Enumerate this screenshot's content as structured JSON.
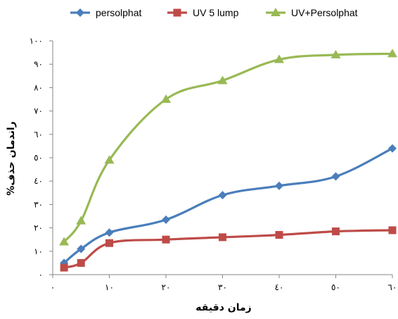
{
  "chart_data": {
    "type": "line",
    "xlabel": "زمان دقیقه",
    "ylabel": "راندمان حذف%",
    "xlim": [
      0,
      60
    ],
    "ylim": [
      0,
      100
    ],
    "x_ticks": [
      0,
      10,
      20,
      30,
      40,
      50,
      60
    ],
    "x_tick_labels": [
      "٠",
      "١٠",
      "٢٠",
      "٣٠",
      "٤٠",
      "٥٠",
      "٦٠"
    ],
    "y_ticks": [
      0,
      10,
      20,
      30,
      40,
      50,
      60,
      70,
      80,
      90,
      100
    ],
    "y_tick_labels": [
      "٠",
      "١٠",
      "٢٠",
      "٣٠",
      "٤٠",
      "٥٠",
      "٦٠",
      "٧٠",
      "٨٠",
      "٩٠",
      "١٠٠"
    ],
    "grid": false,
    "legend_position": "top",
    "series": [
      {
        "name": "persolphat",
        "color": "#4a7ebb",
        "marker": "diamond",
        "x": [
          2,
          5,
          10,
          20,
          30,
          40,
          50,
          60
        ],
        "y": [
          5,
          11,
          18,
          23.5,
          34,
          38,
          42,
          54
        ]
      },
      {
        "name": "UV 5 lump",
        "color": "#be4b48",
        "marker": "square",
        "x": [
          2,
          5,
          10,
          20,
          30,
          40,
          50,
          60
        ],
        "y": [
          3,
          5,
          13.5,
          15,
          16,
          17,
          18.5,
          19
        ]
      },
      {
        "name": "UV+Persolphat",
        "color": "#98b954",
        "marker": "triangle",
        "x": [
          2,
          5,
          10,
          20,
          30,
          40,
          50,
          60
        ],
        "y": [
          14,
          23,
          49,
          75,
          83,
          92,
          94,
          94.5
        ]
      }
    ]
  }
}
